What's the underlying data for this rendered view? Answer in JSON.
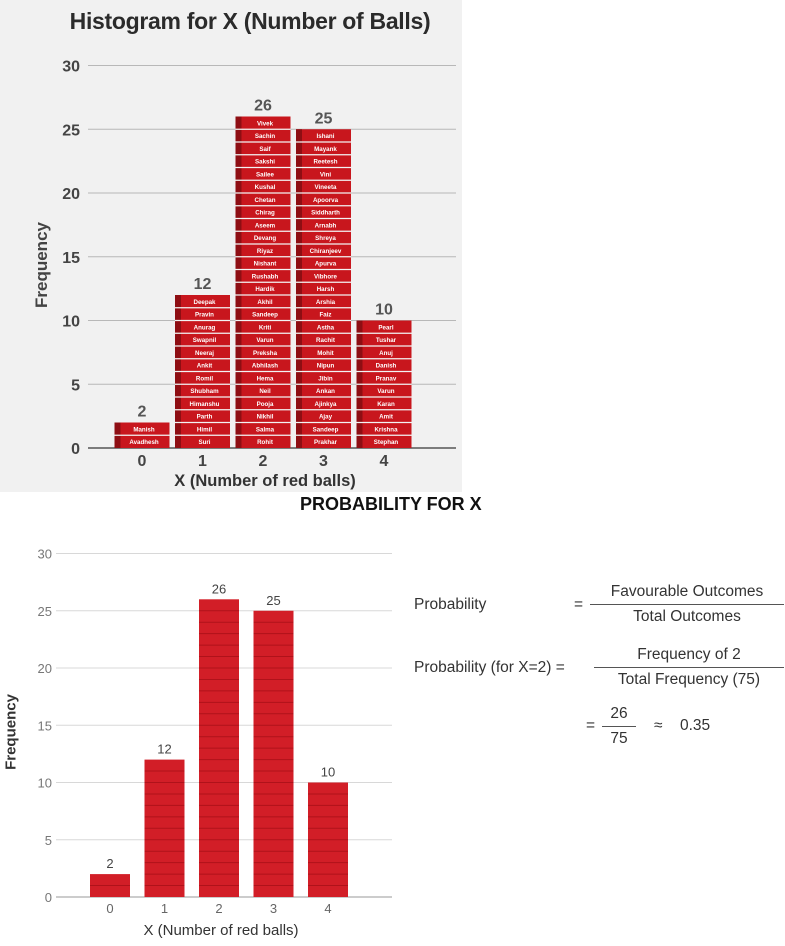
{
  "chart_data": [
    {
      "type": "bar",
      "title": "Histogram for X (Number of Balls)",
      "xlabel": "X (Number of red balls)",
      "ylabel": "Frequency",
      "categories": [
        "0",
        "1",
        "2",
        "3",
        "4"
      ],
      "values": [
        2,
        12,
        26,
        25,
        10
      ],
      "ylim": [
        0,
        30
      ],
      "yticks": [
        "0",
        "5",
        "10",
        "15",
        "20",
        "25",
        "30"
      ],
      "grid": true,
      "bar_color": "#c8161d",
      "names": [
        [
          "Avadhesh",
          "Manish"
        ],
        [
          "Suri",
          "Himil",
          "Parth",
          "Himanshu",
          "Shubham",
          "Romil",
          "Ankit",
          "Neeraj",
          "Swapnil",
          "Anurag",
          "Pravin",
          "Deepak"
        ],
        [
          "Rohit",
          "Salma",
          "Nikhil",
          "Pooja",
          "Neil",
          "Hema",
          "Abhilash",
          "Preksha",
          "Varun",
          "Kriti",
          "Sandeep",
          "Akhil",
          "Hardik",
          "Rushabh",
          "Nishant",
          "Riyaz",
          "Devang",
          "Aseem",
          "Chirag",
          "Chetan",
          "Kushal",
          "Sailee",
          "Sakshi",
          "Saif",
          "Sachin",
          "Vivek"
        ],
        [
          "Prakhar",
          "Sandeep",
          "Ajay",
          "Ajinkya",
          "Ankan",
          "Jibin",
          "Nipun",
          "Mohit",
          "Rachit",
          "Astha",
          "Faiz",
          "Arshia",
          "Harsh",
          "Vibhore",
          "Apurva",
          "Chiranjeev",
          "Shreya",
          "Arnabh",
          "Siddharth",
          "Apoorva",
          "Vineeta",
          "Vini",
          "Reetesh",
          "Mayank",
          "Ishani"
        ],
        [
          "Stephan",
          "Krishna",
          "Amit",
          "Karan",
          "Varun",
          "Pranav",
          "Danish",
          "Anuj",
          "Tushar",
          "Pearl"
        ]
      ]
    },
    {
      "type": "bar",
      "title": "PROBABILITY FOR X",
      "xlabel": "X (Number of red balls)",
      "ylabel": "Frequency",
      "categories": [
        "0",
        "1",
        "2",
        "3",
        "4"
      ],
      "values": [
        2,
        12,
        26,
        25,
        10
      ],
      "ylim": [
        0,
        30
      ],
      "yticks": [
        "0",
        "5",
        "10",
        "15",
        "20",
        "25",
        "30"
      ],
      "grid": true,
      "bar_color": "#d21e27"
    }
  ],
  "formula": {
    "line1_label": "Probability",
    "line1_eq": "=",
    "line1_num": "Favourable Outcomes",
    "line1_den": "Total Outcomes",
    "line2_label": "Probability (for X=2) =",
    "line2_num": "Frequency of 2",
    "line2_den": "Total Frequency (75)",
    "line3_eq": "=",
    "line3_num": "26",
    "line3_den": "75",
    "line3_approx": "≈",
    "line3_result": "0.35"
  }
}
